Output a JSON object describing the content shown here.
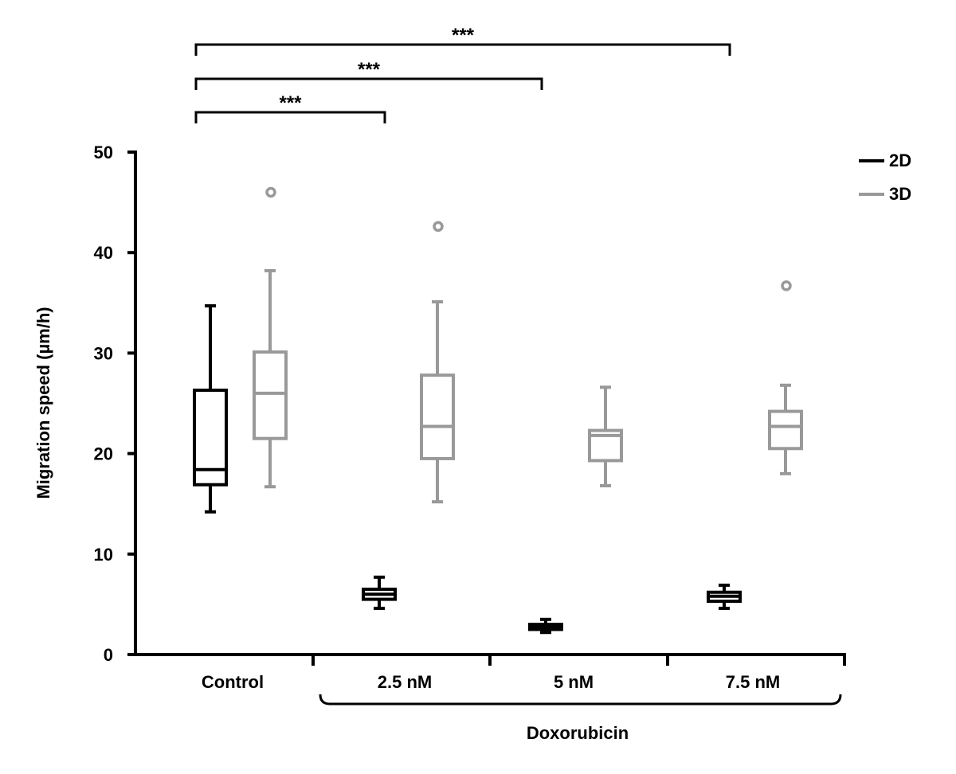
{
  "chart_data": {
    "type": "box",
    "title": "",
    "xlabel": "",
    "ylabel": "Migration speed (µm/h)",
    "ylim": [
      0,
      50
    ],
    "yticks": [
      "0",
      "10",
      "20",
      "30",
      "40",
      "50"
    ],
    "categories": [
      "Control",
      "2.5  nM",
      "5 nM",
      "7.5  nM"
    ],
    "group_label": "Doxorubicin",
    "legend": {
      "position": "top-right",
      "entries": [
        "2D",
        "3D"
      ]
    },
    "colors": {
      "2D": "#000000",
      "3D": "#999999"
    },
    "series": [
      {
        "name": "2D",
        "boxes": [
          {
            "min": 14.2,
            "q1": 16.9,
            "median": 18.4,
            "q3": 26.3,
            "max": 34.7,
            "outliers": []
          },
          {
            "min": 4.6,
            "q1": 5.5,
            "median": 6.0,
            "q3": 6.5,
            "max": 7.7,
            "outliers": []
          },
          {
            "min": 2.2,
            "q1": 2.5,
            "median": 2.8,
            "q3": 3.0,
            "max": 3.5,
            "outliers": []
          },
          {
            "min": 4.6,
            "q1": 5.3,
            "median": 5.8,
            "q3": 6.2,
            "max": 6.9,
            "outliers": []
          }
        ]
      },
      {
        "name": "3D",
        "boxes": [
          {
            "min": 16.7,
            "q1": 21.5,
            "median": 26.0,
            "q3": 30.1,
            "max": 38.2,
            "outliers": [
              46.0
            ]
          },
          {
            "min": 15.2,
            "q1": 19.5,
            "median": 22.7,
            "q3": 27.8,
            "max": 35.1,
            "outliers": [
              42.6
            ]
          },
          {
            "min": 16.8,
            "q1": 19.3,
            "median": 21.8,
            "q3": 22.3,
            "max": 26.6,
            "outliers": []
          },
          {
            "min": 18.0,
            "q1": 20.5,
            "median": 22.7,
            "q3": 24.2,
            "max": 26.8,
            "outliers": [
              36.7
            ]
          }
        ]
      }
    ],
    "significance": [
      {
        "from": "Control",
        "to": "2.5  nM",
        "label": "***"
      },
      {
        "from": "Control",
        "to": "5 nM",
        "label": "***"
      },
      {
        "from": "Control",
        "to": "7.5  nM",
        "label": "***"
      }
    ]
  }
}
